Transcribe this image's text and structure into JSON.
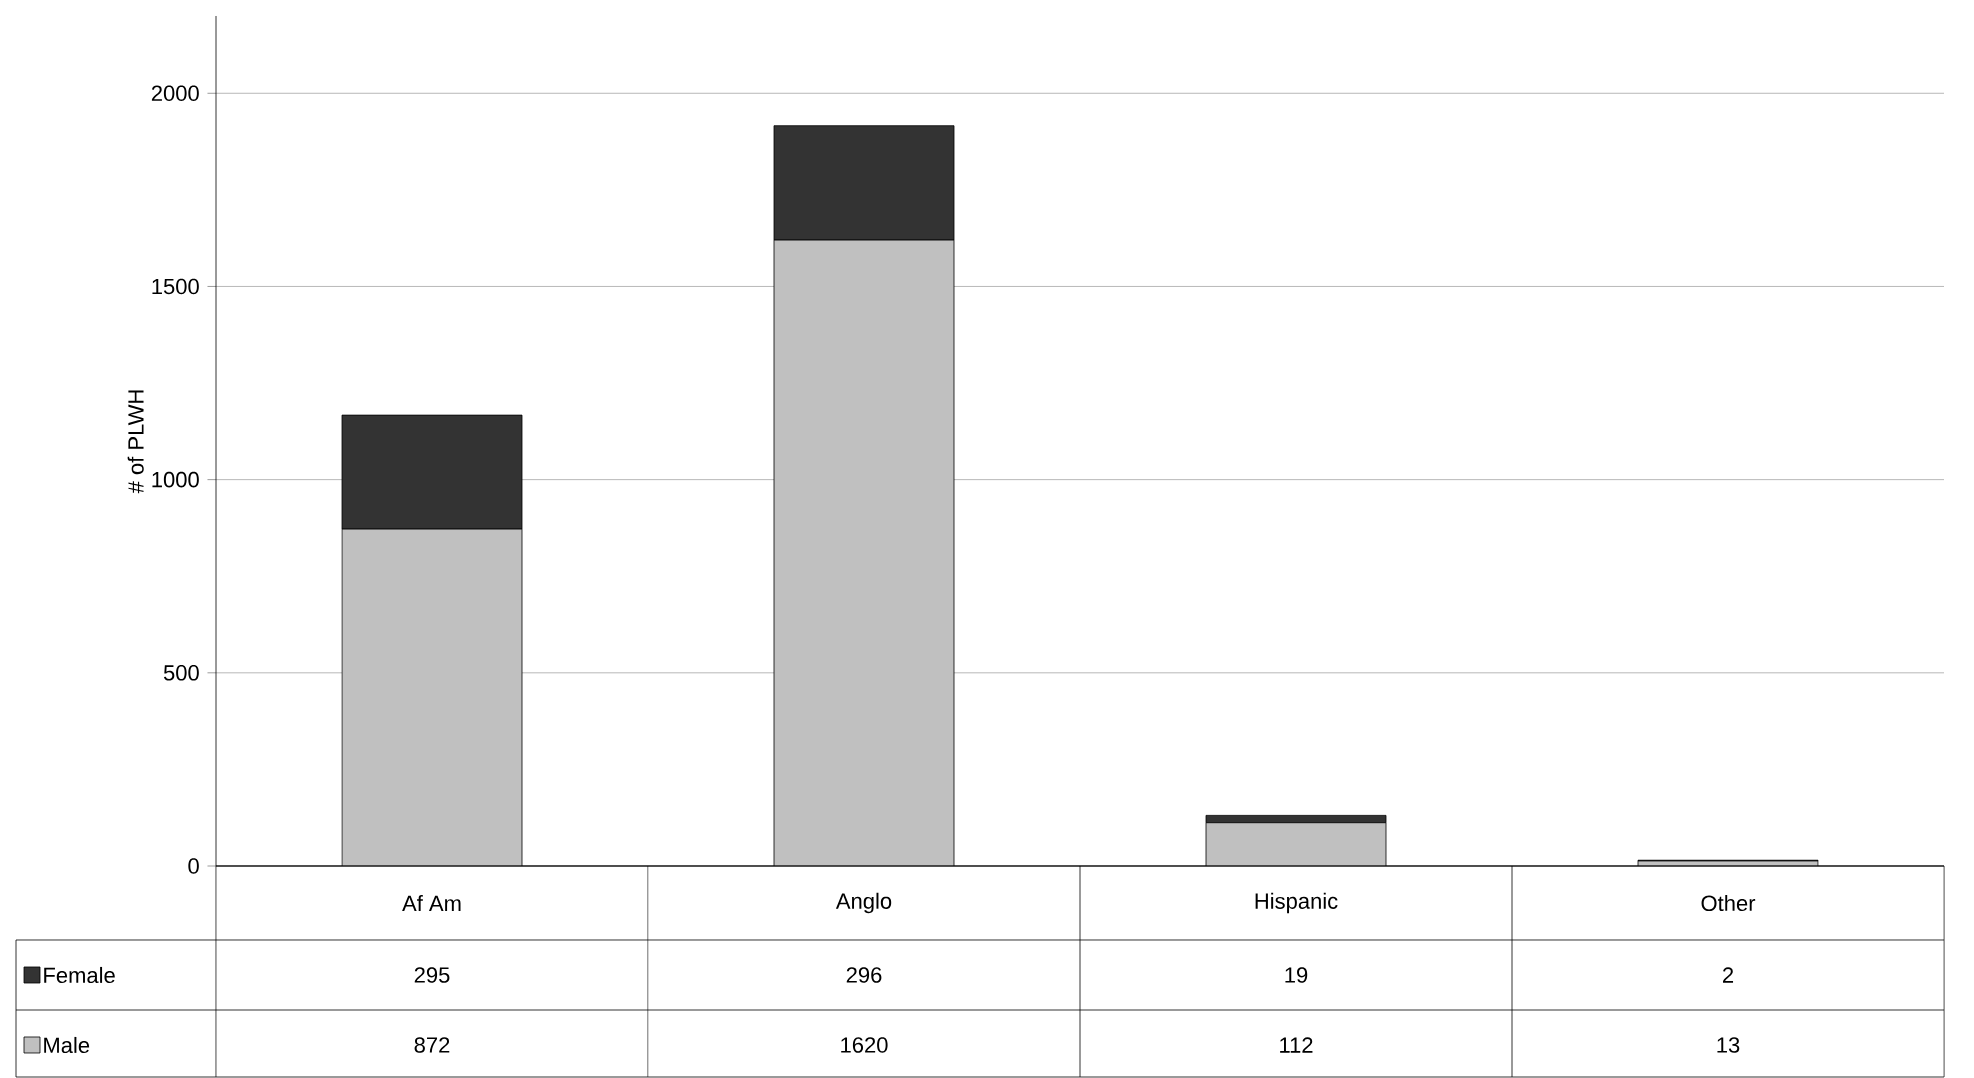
{
  "chart_data": {
    "type": "bar",
    "ylabel": "# of PLWH",
    "stacked": true,
    "categories": [
      "Af Am",
      "Anglo",
      "Hispanic",
      "Other"
    ],
    "series": [
      {
        "name": "Male",
        "color": "#c0c0c0",
        "values": [
          872,
          1620,
          112,
          13
        ]
      },
      {
        "name": "Female",
        "color": "#333333",
        "values": [
          295,
          296,
          19,
          2
        ]
      }
    ],
    "ylim": [
      0,
      2200
    ],
    "yticks": [
      0,
      500,
      1000,
      1500,
      2000
    ],
    "grid": "y",
    "legend": "bottom",
    "data_labels": true
  }
}
